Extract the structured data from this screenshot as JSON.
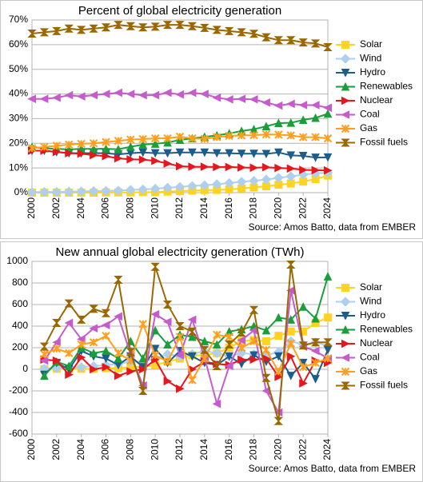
{
  "chart_data": [
    {
      "type": "line",
      "title": "Percent of global electricity generation",
      "source": "Source: Amos Batto, data from EMBER",
      "legend": "right",
      "grid": true,
      "x": [
        2000,
        2001,
        2002,
        2003,
        2004,
        2005,
        2006,
        2007,
        2008,
        2009,
        2010,
        2011,
        2012,
        2013,
        2014,
        2015,
        2016,
        2017,
        2018,
        2019,
        2020,
        2021,
        2022,
        2023,
        2024
      ],
      "xlim": [
        2000,
        2024
      ],
      "xticks": [
        2000,
        2002,
        2004,
        2006,
        2008,
        2010,
        2012,
        2014,
        2016,
        2018,
        2020,
        2022,
        2024
      ],
      "ylim": [
        0,
        70
      ],
      "yticks": [
        {
          "value": 0,
          "label": "0%"
        },
        {
          "value": 10,
          "label": "10%"
        },
        {
          "value": 20,
          "label": "20%"
        },
        {
          "value": 30,
          "label": "30%"
        },
        {
          "value": 40,
          "label": "40%"
        },
        {
          "value": 50,
          "label": "50%"
        },
        {
          "value": 60,
          "label": "60%"
        },
        {
          "value": 70,
          "label": "70%"
        }
      ],
      "series": [
        {
          "name": "Solar",
          "color": "#ffd320",
          "marker": "square",
          "values": [
            0,
            0,
            0,
            0,
            0,
            0,
            0.1,
            0.1,
            0.1,
            0.2,
            0.2,
            0.4,
            0.6,
            0.8,
            1,
            1.1,
            1.3,
            1.7,
            2.1,
            2.6,
            3.2,
            3.7,
            4.5,
            5.5,
            6.9
          ]
        },
        {
          "name": "Wind",
          "color": "#aecfee",
          "marker": "diamond",
          "values": [
            0.2,
            0.3,
            0.3,
            0.4,
            0.5,
            0.6,
            0.7,
            0.8,
            1.1,
            1.3,
            1.6,
            2,
            2.3,
            2.7,
            3,
            3.4,
            3.9,
            4.4,
            4.8,
            5.3,
            6,
            6.6,
            7.3,
            7.8,
            8.1
          ]
        },
        {
          "name": "Hydro",
          "color": "#1c5d8c",
          "marker": "triangle-down",
          "values": [
            17,
            17,
            16.5,
            16,
            16,
            16,
            16,
            15.5,
            16,
            16.3,
            16,
            16,
            16.3,
            16.3,
            16.3,
            16,
            16,
            15.8,
            15.8,
            15.7,
            16.3,
            15.1,
            14.9,
            14.2,
            14.3
          ]
        },
        {
          "name": "Renewables",
          "color": "#1a9e3a",
          "marker": "triangle-up",
          "values": [
            18.5,
            18,
            17.8,
            17.5,
            17.8,
            17.7,
            17.8,
            17.6,
            18.6,
            19.5,
            19.8,
            20.3,
            21.4,
            22,
            22.6,
            23.2,
            24,
            25,
            25.7,
            26.9,
            28.2,
            28.3,
            29.5,
            30.3,
            32
          ]
        },
        {
          "name": "Nuclear",
          "color": "#e8161c",
          "marker": "triangle-right",
          "values": [
            17,
            17,
            16.5,
            16,
            15.8,
            15.2,
            14.8,
            13.9,
            13.5,
            13.4,
            12.9,
            11.8,
            10.7,
            10.5,
            10.5,
            10.4,
            10.4,
            10.2,
            10.1,
            10.3,
            10,
            9.8,
            9.2,
            9.1,
            9
          ]
        },
        {
          "name": "Coal",
          "color": "#c55bcc",
          "marker": "triangle-left",
          "values": [
            38,
            38,
            38.5,
            39.5,
            39,
            39.5,
            40,
            40.5,
            40,
            39.5,
            39.5,
            40.5,
            39.8,
            40.5,
            40,
            38.5,
            37.8,
            38,
            37.8,
            36.5,
            35.3,
            36,
            35.5,
            35.5,
            34.4
          ]
        },
        {
          "name": "Gas",
          "color": "#ff9f1c",
          "marker": "x",
          "values": [
            18,
            18.5,
            19,
            19.5,
            19.8,
            20,
            20.5,
            21,
            21.5,
            21.7,
            22,
            22,
            22.7,
            22,
            21.8,
            22.5,
            23,
            23.2,
            23.3,
            23.6,
            23.5,
            23.2,
            22.5,
            22.5,
            22
          ]
        },
        {
          "name": "Fossil fuels",
          "color": "#9a6700",
          "marker": "hourglass",
          "values": [
            64.5,
            65,
            65.5,
            66.5,
            66,
            66.5,
            67,
            68,
            67.5,
            67,
            67.3,
            68,
            68,
            67.5,
            66.8,
            66,
            65.5,
            65,
            64.4,
            63,
            61.8,
            61.8,
            60.9,
            60.5,
            59
          ]
        }
      ]
    },
    {
      "type": "line",
      "title": "New annual global electricity generation (TWh)",
      "source": "Source: Amos Batto, data from EMBER",
      "legend": "right",
      "grid": true,
      "x": [
        2001,
        2002,
        2003,
        2004,
        2005,
        2006,
        2007,
        2008,
        2009,
        2010,
        2011,
        2012,
        2013,
        2014,
        2015,
        2016,
        2017,
        2018,
        2019,
        2020,
        2021,
        2022,
        2023,
        2024
      ],
      "xlim": [
        2000,
        2024
      ],
      "xticks": [
        2000,
        2002,
        2004,
        2006,
        2008,
        2010,
        2012,
        2014,
        2016,
        2018,
        2020,
        2022,
        2024
      ],
      "ylim": [
        -600,
        1000
      ],
      "yticks": [
        -600,
        -400,
        -200,
        0,
        200,
        400,
        600,
        800,
        1000
      ],
      "series": [
        {
          "name": "Solar",
          "color": "#ffd320",
          "marker": "square",
          "values": [
            0,
            5,
            5,
            5,
            5,
            10,
            10,
            20,
            20,
            40,
            70,
            100,
            130,
            130,
            150,
            200,
            260,
            270,
            260,
            310,
            350,
            350,
            430,
            480
          ]
        },
        {
          "name": "Wind",
          "color": "#aecfee",
          "marker": "diamond",
          "values": [
            5,
            10,
            20,
            20,
            30,
            40,
            50,
            70,
            70,
            100,
            140,
            120,
            140,
            170,
            150,
            120,
            150,
            140,
            130,
            160,
            260,
            230,
            250,
            220
          ]
        },
        {
          "name": "Hydro",
          "color": "#1c5d8c",
          "marker": "triangle-down",
          "values": [
            -50,
            60,
            0,
            170,
            120,
            100,
            40,
            120,
            20,
            190,
            60,
            170,
            120,
            60,
            40,
            120,
            50,
            130,
            70,
            120,
            -60,
            60,
            -90,
            180
          ]
        },
        {
          "name": "Renewables",
          "color": "#1a9e3a",
          "marker": "triangle-up",
          "values": [
            -60,
            70,
            30,
            200,
            150,
            170,
            100,
            260,
            100,
            360,
            230,
            320,
            300,
            260,
            230,
            350,
            370,
            400,
            360,
            480,
            460,
            580,
            470,
            860
          ]
        },
        {
          "name": "Nuclear",
          "color": "#e8161c",
          "marker": "triangle-right",
          "values": [
            90,
            80,
            -50,
            110,
            0,
            20,
            -60,
            -20,
            0,
            90,
            -110,
            -180,
            0,
            70,
            50,
            40,
            90,
            90,
            100,
            -70,
            120,
            -130,
            80,
            60
          ]
        },
        {
          "name": "Coal",
          "color": "#c55bcc",
          "marker": "triangle-left",
          "values": [
            80,
            250,
            430,
            280,
            380,
            410,
            490,
            140,
            -150,
            510,
            440,
            130,
            460,
            110,
            -320,
            30,
            270,
            360,
            -200,
            -400,
            730,
            210,
            170,
            100
          ]
        },
        {
          "name": "Gas",
          "color": "#ff9f1c",
          "marker": "x",
          "values": [
            140,
            190,
            150,
            230,
            250,
            310,
            150,
            80,
            420,
            130,
            70,
            300,
            -100,
            100,
            320,
            300,
            200,
            260,
            180,
            -20,
            240,
            20,
            60,
            100
          ]
        },
        {
          "name": "Fossil fuels",
          "color": "#9a6700",
          "marker": "hourglass",
          "values": [
            210,
            430,
            610,
            460,
            560,
            520,
            830,
            160,
            -200,
            950,
            600,
            400,
            350,
            180,
            30,
            230,
            340,
            550,
            -80,
            -480,
            970,
            220,
            250,
            250
          ]
        }
      ]
    }
  ]
}
